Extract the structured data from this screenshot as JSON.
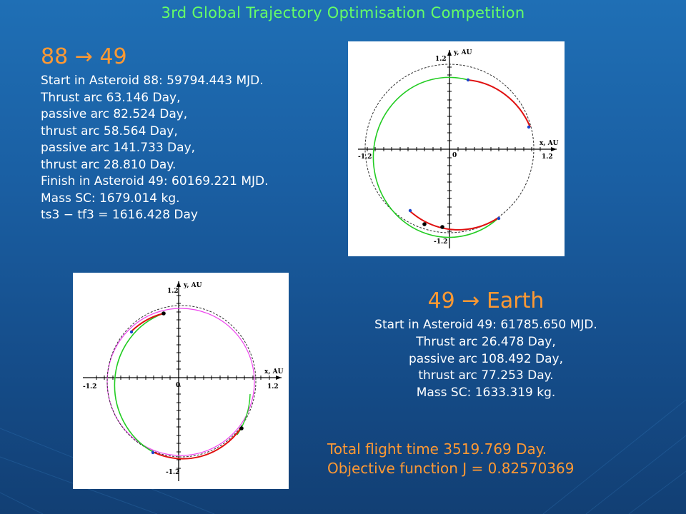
{
  "title": "3rd Global Trajectory Optimisation Competition",
  "leg1": {
    "heading": "88 → 49",
    "lines": [
      "Start in Asteroid 88: 59794.443 MJD.",
      "Thrust arc 63.146 Day,",
      "passive arc 82.524 Day,",
      "thrust arc 58.564 Day,",
      "passive arc 141.733 Day,",
      "thrust arc 28.810 Day.",
      "Finish in Asteroid 49: 60169.221 MJD.",
      "Mass SC: 1679.014 kg.",
      "ts3 − tf3 = 1616.428 Day"
    ]
  },
  "leg2": {
    "heading": "49 → Earth",
    "lines": [
      "Start in Asteroid 49: 61785.650 MJD.",
      "Thrust arc 26.478 Day,",
      "passive arc 108.492 Day,",
      "thrust arc 77.253 Day.",
      "Mass SC: 1633.319 kg."
    ]
  },
  "summary": {
    "total_flight": "Total flight time 3519.769 Day.",
    "objective": "Objective function J = 0.82570369"
  },
  "plots": {
    "y_axis_label": "y, AU",
    "x_axis_label": "x, AU",
    "tick_pos": "1.2",
    "tick_neg": "-1.2",
    "origin": "0"
  },
  "colors": {
    "title": "#66ff66",
    "heading": "#ff9933",
    "thrust_arc": "#e01010",
    "passive_arc": "#22cc22",
    "earth_orbit": "#ee44ee",
    "orbit_dashed": "#333333"
  }
}
